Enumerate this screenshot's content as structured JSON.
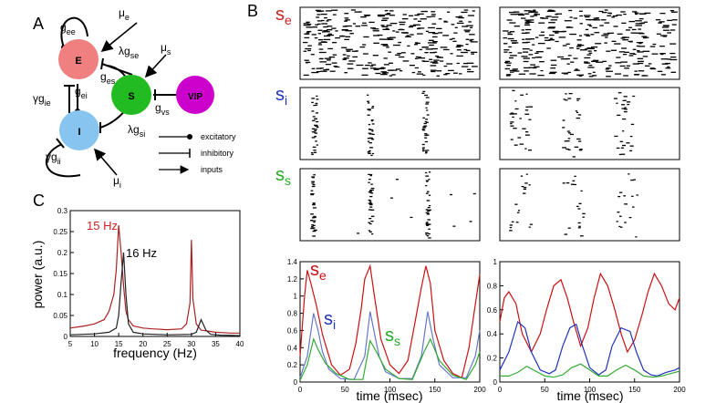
{
  "panels": {
    "A": {
      "label": "A",
      "nodes": {
        "E": "E",
        "S": "S",
        "I": "I",
        "VIP": "VIP"
      },
      "edge_labels": {
        "gee": "g",
        "gee_sub": "ee",
        "mue": "μ",
        "mue_sub": "e",
        "lgse": "λg",
        "lgse_sub": "se",
        "mus": "μ",
        "mus_sub": "s",
        "ges": "g",
        "ges_sub": "es",
        "gei": "g",
        "gei_sub": "ei",
        "ggie": "γg",
        "ggie_sub": "ie",
        "gvs": "g",
        "gvs_sub": "vs",
        "lgsi": "λg",
        "lgsi_sub": "si",
        "ggii": "γg",
        "ggii_sub": "ii",
        "mui": "μ",
        "mui_sub": "i"
      },
      "legend": [
        "excitatory",
        "inhibitory",
        "inputs"
      ],
      "colors": {
        "E": "#f08080",
        "S": "#22bb22",
        "I": "#88c4f0",
        "VIP": "#cc00cc"
      }
    },
    "B": {
      "label": "B",
      "raster_labels": [
        {
          "main": "s",
          "sub": "e",
          "color": "#cc2222"
        },
        {
          "main": "s",
          "sub": "i",
          "color": "#2233bb"
        },
        {
          "main": "s",
          "sub": "s",
          "color": "#22aa22"
        }
      ],
      "trace_labels": {
        "se": {
          "main": "s",
          "sub": "e"
        },
        "si": {
          "main": "s",
          "sub": "i"
        },
        "ss": {
          "main": "s",
          "sub": "s"
        }
      },
      "xlabel": "time (msec)"
    },
    "C": {
      "label": "C",
      "xlabel": "frequency (Hz)",
      "ylabel": "power (a.u.)",
      "annotations": [
        "15 Hz",
        "16 Hz"
      ]
    }
  },
  "chart_data": [
    {
      "type": "line",
      "panel": "C",
      "xlabel": "frequency (Hz)",
      "ylabel": "power (a.u.)",
      "xlim": [
        5,
        40
      ],
      "ylim": [
        0,
        0.3
      ],
      "xticks": [
        "5",
        "10",
        "15",
        "20",
        "25",
        "30",
        "35",
        "40"
      ],
      "yticks": [
        "0",
        "0.05",
        "0.1",
        "0.15",
        "0.2",
        "0.25",
        "0.3"
      ],
      "series": [
        {
          "color": "#aa2222",
          "x": [
            5,
            8,
            10,
            12,
            13,
            14,
            14.5,
            15,
            15.5,
            16,
            16.5,
            17,
            18,
            20,
            22,
            25,
            28,
            29,
            29.7,
            30,
            30.3,
            31,
            32,
            35,
            38,
            40
          ],
          "y": [
            0.02,
            0.025,
            0.03,
            0.04,
            0.06,
            0.1,
            0.16,
            0.265,
            0.2,
            0.12,
            0.06,
            0.04,
            0.025,
            0.02,
            0.018,
            0.016,
            0.018,
            0.03,
            0.08,
            0.23,
            0.09,
            0.03,
            0.015,
            0.01,
            0.008,
            0.008
          ]
        },
        {
          "color": "#222222",
          "x": [
            5,
            10,
            13,
            14.5,
            15,
            15.5,
            16,
            16.5,
            17,
            18,
            20,
            25,
            30,
            31,
            32,
            33,
            34,
            36,
            40
          ],
          "y": [
            0.004,
            0.006,
            0.01,
            0.02,
            0.05,
            0.13,
            0.2,
            0.1,
            0.03,
            0.01,
            0.006,
            0.004,
            0.005,
            0.01,
            0.04,
            0.015,
            0.005,
            0.003,
            0.002
          ]
        }
      ],
      "annotations": [
        {
          "text": "15 Hz",
          "color": "#cc2222"
        },
        {
          "text": "16 Hz",
          "color": "#000000"
        }
      ]
    },
    {
      "type": "line",
      "panel": "B-left",
      "xlabel": "time (msec)",
      "xlim": [
        0,
        200
      ],
      "ylim": [
        0,
        1.4
      ],
      "xticks": [
        "0",
        "50",
        "100",
        "150",
        "200"
      ],
      "yticks": [
        "0",
        "0.2",
        "0.4",
        "0.6",
        "0.8",
        "1",
        "1.2",
        "1.4"
      ],
      "series": [
        {
          "name": "se",
          "color": "#cc1111",
          "x": [
            0,
            5,
            8,
            12,
            18,
            25,
            35,
            45,
            55,
            62,
            68,
            72,
            78,
            82,
            90,
            100,
            110,
            120,
            128,
            135,
            140,
            145,
            150,
            160,
            170,
            180,
            188,
            195,
            200
          ],
          "y": [
            0.3,
            1.0,
            1.3,
            1.15,
            0.9,
            0.55,
            0.2,
            0.08,
            0.15,
            0.45,
            0.85,
            1.2,
            1.35,
            1.05,
            0.5,
            0.2,
            0.1,
            0.25,
            0.7,
            1.1,
            1.35,
            1.15,
            0.6,
            0.25,
            0.1,
            0.05,
            0.4,
            0.9,
            1.25
          ]
        },
        {
          "name": "si",
          "color": "#6677cc",
          "x": [
            0,
            8,
            15,
            20,
            25,
            32,
            45,
            60,
            72,
            78,
            83,
            88,
            95,
            110,
            125,
            135,
            142,
            148,
            155,
            170,
            185,
            195,
            200
          ],
          "y": [
            0.05,
            0.3,
            0.8,
            0.6,
            0.35,
            0.15,
            0.04,
            0.03,
            0.3,
            0.82,
            0.55,
            0.3,
            0.12,
            0.04,
            0.04,
            0.3,
            0.82,
            0.5,
            0.2,
            0.05,
            0.05,
            0.3,
            0.6
          ]
        },
        {
          "name": "ss",
          "color": "#33aa33",
          "x": [
            0,
            8,
            15,
            20,
            28,
            40,
            55,
            70,
            78,
            85,
            95,
            110,
            125,
            138,
            145,
            155,
            170,
            185,
            195,
            200
          ],
          "y": [
            0.02,
            0.2,
            0.5,
            0.38,
            0.22,
            0.1,
            0.03,
            0.03,
            0.48,
            0.35,
            0.15,
            0.04,
            0.03,
            0.35,
            0.5,
            0.25,
            0.08,
            0.03,
            0.2,
            0.35
          ]
        }
      ]
    },
    {
      "type": "line",
      "panel": "B-right",
      "xlabel": "time (msec)",
      "xlim": [
        0,
        200
      ],
      "ylim": [
        0,
        1
      ],
      "xticks": [
        "0",
        "50",
        "100",
        "150",
        "200"
      ],
      "yticks": [
        "0",
        "0.2",
        "0.4",
        "0.6",
        "0.8",
        "1"
      ],
      "series": [
        {
          "name": "se",
          "color": "#cc1111",
          "x": [
            0,
            5,
            10,
            18,
            25,
            35,
            45,
            52,
            60,
            68,
            75,
            82,
            90,
            98,
            105,
            112,
            120,
            128,
            135,
            142,
            150,
            158,
            165,
            172,
            180,
            188,
            195,
            200
          ],
          "y": [
            0.5,
            0.7,
            0.75,
            0.65,
            0.4,
            0.25,
            0.4,
            0.6,
            0.8,
            0.85,
            0.7,
            0.5,
            0.3,
            0.45,
            0.7,
            0.9,
            0.8,
            0.6,
            0.4,
            0.25,
            0.35,
            0.55,
            0.75,
            0.9,
            0.8,
            0.65,
            0.6,
            0.7
          ]
        },
        {
          "name": "si",
          "color": "#2233bb",
          "x": [
            0,
            10,
            20,
            28,
            35,
            45,
            55,
            62,
            70,
            78,
            85,
            92,
            100,
            110,
            118,
            125,
            135,
            145,
            152,
            160,
            168,
            175,
            185,
            195,
            200
          ],
          "y": [
            0.1,
            0.25,
            0.5,
            0.45,
            0.25,
            0.1,
            0.07,
            0.1,
            0.3,
            0.45,
            0.48,
            0.3,
            0.12,
            0.06,
            0.1,
            0.3,
            0.45,
            0.42,
            0.25,
            0.1,
            0.06,
            0.05,
            0.08,
            0.1,
            0.12
          ]
        },
        {
          "name": "ss",
          "color": "#33aa33",
          "x": [
            0,
            10,
            20,
            30,
            40,
            50,
            60,
            70,
            80,
            90,
            100,
            110,
            120,
            130,
            140,
            150,
            160,
            170,
            180,
            190,
            200
          ],
          "y": [
            0.05,
            0.05,
            0.08,
            0.13,
            0.09,
            0.05,
            0.04,
            0.06,
            0.12,
            0.15,
            0.1,
            0.05,
            0.05,
            0.1,
            0.14,
            0.1,
            0.05,
            0.04,
            0.05,
            0.07,
            0.09
          ]
        }
      ]
    }
  ]
}
